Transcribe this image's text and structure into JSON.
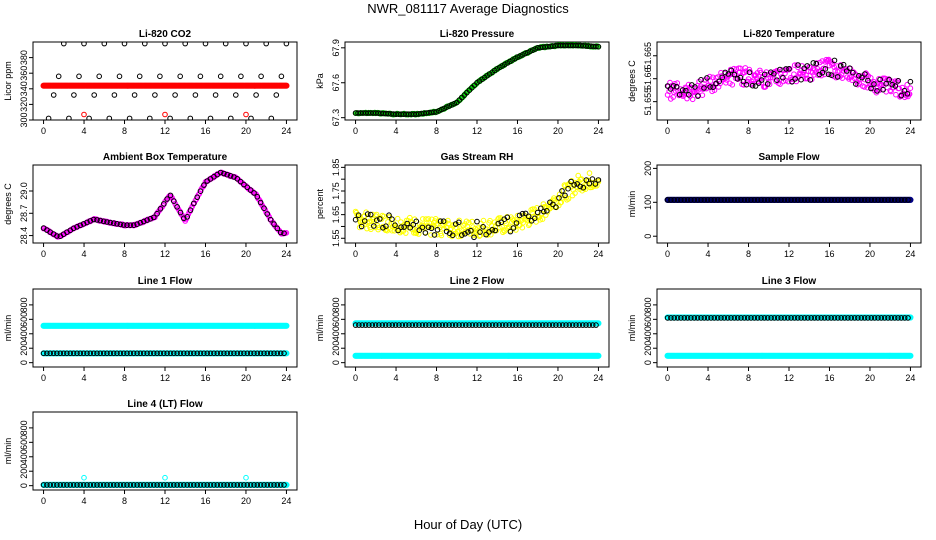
{
  "figure": {
    "title": "NWR_081117  Average Diagnostics",
    "xlabel": "Hour of Day (UTC)"
  },
  "chart_data": [
    {
      "type": "scatter",
      "title": "Li-820 CO2",
      "ylabel": "Licor ppm",
      "xlim": [
        0,
        24
      ],
      "ylim": [
        300,
        400
      ],
      "xticks": [
        0,
        4,
        8,
        12,
        16,
        20,
        24
      ],
      "yticks": [
        300,
        320,
        340,
        360,
        380
      ],
      "grid": false,
      "series": [
        {
          "color": "#ff0000",
          "marker": "filled",
          "pattern": "dense-flat",
          "x": [
            0,
            4,
            8,
            12,
            16,
            20,
            24
          ],
          "y": [
            344,
            344,
            344,
            344,
            344,
            344,
            344
          ]
        },
        {
          "color": "#000000",
          "marker": "open-circle",
          "x": [
            0.5,
            1.0,
            1.5,
            2.0,
            2.5,
            3.0,
            3.5,
            4.0,
            4.5,
            5.0,
            5.5,
            6.0,
            6.5,
            7.0,
            7.5,
            8.0,
            8.5,
            9.0,
            9.5,
            10.0,
            10.5,
            11.0,
            11.5,
            12.0,
            12.5,
            13.0,
            13.5,
            14.0,
            14.5,
            15.0,
            15.5,
            16.0,
            16.5,
            17.0,
            17.5,
            18.0,
            18.5,
            19.0,
            19.5,
            20.0,
            20.5,
            21.0,
            21.5,
            22.0,
            22.5,
            23.0,
            23.5,
            24.0
          ],
          "y": [
            302,
            332,
            356,
            398,
            302,
            332,
            356,
            398,
            302,
            332,
            356,
            398,
            302,
            332,
            356,
            398,
            302,
            332,
            356,
            398,
            302,
            332,
            356,
            398,
            302,
            332,
            356,
            398,
            302,
            332,
            356,
            398,
            302,
            332,
            356,
            398,
            302,
            332,
            356,
            398,
            302,
            332,
            356,
            398,
            302,
            332,
            356,
            398
          ]
        },
        {
          "color": "#ff0000",
          "marker": "open-circle",
          "x": [
            4,
            12,
            20
          ],
          "y": [
            307,
            307,
            307
          ]
        }
      ]
    },
    {
      "type": "scatter",
      "title": "Li-820 Pressure",
      "ylabel": "kPa",
      "xlim": [
        0,
        24
      ],
      "ylim": [
        67.28,
        67.95
      ],
      "xticks": [
        0,
        4,
        8,
        12,
        16,
        20,
        24
      ],
      "yticks": [
        67.3,
        67.6,
        67.9
      ],
      "grid": false,
      "series": [
        {
          "color": "#00cc00",
          "marker": "open-circle",
          "x": [
            0,
            2,
            4,
            6,
            8,
            10,
            12,
            14,
            16,
            18,
            20,
            22,
            24
          ],
          "y": [
            67.34,
            67.34,
            67.33,
            67.33,
            67.35,
            67.43,
            67.6,
            67.72,
            67.82,
            67.9,
            67.92,
            67.92,
            67.91
          ]
        },
        {
          "color": "#000000",
          "marker": "open-circle",
          "x": [
            0,
            2,
            4,
            6,
            8,
            10,
            12,
            14,
            16,
            18,
            20,
            22,
            24
          ],
          "y": [
            67.34,
            67.34,
            67.33,
            67.33,
            67.35,
            67.43,
            67.6,
            67.72,
            67.82,
            67.9,
            67.92,
            67.92,
            67.91
          ]
        }
      ]
    },
    {
      "type": "scatter",
      "title": "Li-820 Temperature",
      "ylabel": "degrees C",
      "xlim": [
        0,
        24
      ],
      "ylim": [
        51.651,
        51.668
      ],
      "xticks": [
        0,
        4,
        8,
        12,
        16,
        20,
        24
      ],
      "yticks": [
        51.655,
        51.66,
        51.665
      ],
      "ytick_labels": [
        "51.655",
        "51.66",
        "51.665"
      ],
      "grid": false,
      "series": [
        {
          "color": "#ff00ff",
          "marker": "open-circle",
          "pattern": "noisy",
          "x": [
            0,
            2,
            4,
            6,
            8,
            10,
            12,
            14,
            16,
            18,
            20,
            22,
            24
          ],
          "y": [
            51.6575,
            51.657,
            51.6585,
            51.6605,
            51.6605,
            51.6595,
            51.661,
            51.6615,
            51.6625,
            51.661,
            51.659,
            51.658,
            51.6575
          ]
        },
        {
          "color": "#000000",
          "marker": "open-circle",
          "pattern": "noisy",
          "x": [
            0,
            2,
            4,
            6,
            8,
            10,
            12,
            14,
            16,
            18,
            20,
            22,
            24
          ],
          "y": [
            51.6575,
            51.657,
            51.6585,
            51.6605,
            51.6605,
            51.6595,
            51.661,
            51.6615,
            51.6625,
            51.661,
            51.659,
            51.658,
            51.6575
          ]
        }
      ]
    },
    {
      "type": "scatter",
      "title": "Ambient Box Temperature",
      "ylabel": "degrees C",
      "xlim": [
        0,
        24
      ],
      "ylim": [
        28.3,
        29.35
      ],
      "xticks": [
        0,
        4,
        8,
        12,
        16,
        20,
        24
      ],
      "yticks": [
        28.4,
        28.7,
        29.0
      ],
      "ytick_labels": [
        "28.4",
        "28.7",
        "29.0"
      ],
      "grid": false,
      "series": [
        {
          "color": "#ff00ff",
          "marker": "open-circle",
          "x": [
            0,
            1.5,
            3,
            5,
            6,
            8,
            9,
            11,
            12.5,
            14,
            14.8,
            16,
            17.5,
            19,
            21,
            22.5,
            23.5
          ],
          "y": [
            28.5,
            28.38,
            28.5,
            28.62,
            28.59,
            28.54,
            28.54,
            28.65,
            28.95,
            28.6,
            28.82,
            29.12,
            29.25,
            29.18,
            28.95,
            28.6,
            28.43
          ]
        },
        {
          "color": "#000000",
          "marker": "open-circle",
          "pattern": "sparse",
          "x": [
            0,
            1.5,
            3,
            5,
            6,
            8,
            9,
            11,
            12.5,
            14,
            14.8,
            16,
            17.5,
            19,
            21,
            22.5,
            23.5
          ],
          "y": [
            28.5,
            28.38,
            28.5,
            28.62,
            28.59,
            28.54,
            28.54,
            28.65,
            28.95,
            28.6,
            28.82,
            29.12,
            29.25,
            29.18,
            28.95,
            28.6,
            28.43
          ]
        }
      ]
    },
    {
      "type": "scatter",
      "title": "Gas Stream RH",
      "ylabel": "percent",
      "xlim": [
        0,
        24
      ],
      "ylim": [
        1.53,
        1.86
      ],
      "xticks": [
        0,
        4,
        8,
        12,
        16,
        20,
        24
      ],
      "yticks": [
        1.55,
        1.6,
        1.65,
        1.7,
        1.75,
        1.8,
        1.85
      ],
      "ytick_labels": [
        "1.55",
        "",
        "1.65",
        "",
        "1.75",
        "",
        "1.85"
      ],
      "grid": false,
      "series": [
        {
          "color": "#ffff00",
          "marker": "open-circle",
          "pattern": "noisy",
          "x": [
            0,
            2,
            4,
            6,
            8,
            10,
            12,
            14,
            16,
            18,
            20,
            22,
            24
          ],
          "y": [
            1.63,
            1.62,
            1.61,
            1.6,
            1.6,
            1.59,
            1.59,
            1.6,
            1.61,
            1.65,
            1.72,
            1.78,
            1.8
          ]
        },
        {
          "color": "#000000",
          "marker": "open-circle",
          "pattern": "noisy",
          "x": [
            0,
            2,
            4,
            6,
            8,
            10,
            12,
            14,
            16,
            18,
            20,
            22,
            24
          ],
          "y": [
            1.63,
            1.62,
            1.61,
            1.6,
            1.6,
            1.59,
            1.59,
            1.6,
            1.61,
            1.65,
            1.72,
            1.78,
            1.8
          ]
        }
      ]
    },
    {
      "type": "scatter",
      "title": "Sample Flow",
      "ylabel": "ml/min",
      "xlim": [
        0,
        24
      ],
      "ylim": [
        -20,
        210
      ],
      "xticks": [
        0,
        4,
        8,
        12,
        16,
        20,
        24
      ],
      "yticks": [
        0,
        100,
        200
      ],
      "grid": false,
      "series": [
        {
          "color": "#000080",
          "marker": "filled",
          "pattern": "dense-flat",
          "x": [
            0,
            24
          ],
          "y": [
            107,
            107
          ]
        },
        {
          "color": "#000000",
          "marker": "open-circle",
          "pattern": "dense-flat",
          "x": [
            0,
            24
          ],
          "y": [
            107,
            107
          ]
        }
      ]
    },
    {
      "type": "scatter",
      "title": "Line 1 Flow",
      "ylabel": "ml/min",
      "xlim": [
        0,
        24
      ],
      "ylim": [
        -60,
        1020
      ],
      "xticks": [
        0,
        4,
        8,
        12,
        16,
        20,
        24
      ],
      "yticks": [
        0,
        200,
        400,
        600,
        800
      ],
      "grid": false,
      "series": [
        {
          "color": "#00ffff",
          "marker": "filled",
          "pattern": "dense-flat",
          "x": [
            0,
            24
          ],
          "y": [
            510,
            510
          ]
        },
        {
          "color": "#00ffff",
          "marker": "filled",
          "pattern": "dense-flat",
          "x": [
            0,
            24
          ],
          "y": [
            130,
            130
          ]
        },
        {
          "color": "#000000",
          "marker": "open-circle",
          "pattern": "dense-flat",
          "x": [
            0,
            24
          ],
          "y": [
            130,
            130
          ]
        }
      ]
    },
    {
      "type": "scatter",
      "title": "Line 2 Flow",
      "ylabel": "ml/min",
      "xlim": [
        0,
        24
      ],
      "ylim": [
        -60,
        1020
      ],
      "xticks": [
        0,
        4,
        8,
        12,
        16,
        20,
        24
      ],
      "yticks": [
        0,
        200,
        400,
        600,
        800
      ],
      "grid": false,
      "series": [
        {
          "color": "#00ffff",
          "marker": "filled",
          "pattern": "dense-flat",
          "x": [
            0,
            24
          ],
          "y": [
            545,
            545
          ]
        },
        {
          "color": "#00ffff",
          "marker": "filled",
          "pattern": "dense-flat",
          "x": [
            0,
            24
          ],
          "y": [
            95,
            95
          ]
        },
        {
          "color": "#000000",
          "marker": "open-circle",
          "pattern": "dense-flat",
          "x": [
            0,
            24
          ],
          "y": [
            520,
            520
          ]
        }
      ]
    },
    {
      "type": "scatter",
      "title": "Line 3 Flow",
      "ylabel": "ml/min",
      "xlim": [
        0,
        24
      ],
      "ylim": [
        -60,
        1020
      ],
      "xticks": [
        0,
        4,
        8,
        12,
        16,
        20,
        24
      ],
      "yticks": [
        0,
        200,
        400,
        600,
        800
      ],
      "grid": false,
      "series": [
        {
          "color": "#00ffff",
          "marker": "filled",
          "pattern": "dense-flat",
          "x": [
            0,
            24
          ],
          "y": [
            625,
            625
          ]
        },
        {
          "color": "#00ffff",
          "marker": "filled",
          "pattern": "dense-flat",
          "x": [
            0,
            24
          ],
          "y": [
            95,
            95
          ]
        },
        {
          "color": "#000000",
          "marker": "open-circle",
          "pattern": "dense-flat",
          "x": [
            0,
            24
          ],
          "y": [
            620,
            620
          ]
        }
      ]
    },
    {
      "type": "scatter",
      "title": "Line 4 (LT) Flow",
      "ylabel": "ml/min",
      "xlim": [
        0,
        24
      ],
      "ylim": [
        -60,
        1020
      ],
      "xticks": [
        0,
        4,
        8,
        12,
        16,
        20,
        24
      ],
      "yticks": [
        0,
        200,
        400,
        600,
        800
      ],
      "grid": false,
      "series": [
        {
          "color": "#00ffff",
          "marker": "filled",
          "pattern": "dense-flat",
          "x": [
            0,
            24
          ],
          "y": [
            10,
            10
          ]
        },
        {
          "color": "#000000",
          "marker": "open-circle",
          "pattern": "dense-flat",
          "x": [
            0,
            24
          ],
          "y": [
            10,
            10
          ]
        },
        {
          "color": "#00ffff",
          "marker": "open-circle",
          "x": [
            4,
            12,
            20
          ],
          "y": [
            110,
            110,
            110
          ]
        }
      ]
    }
  ]
}
